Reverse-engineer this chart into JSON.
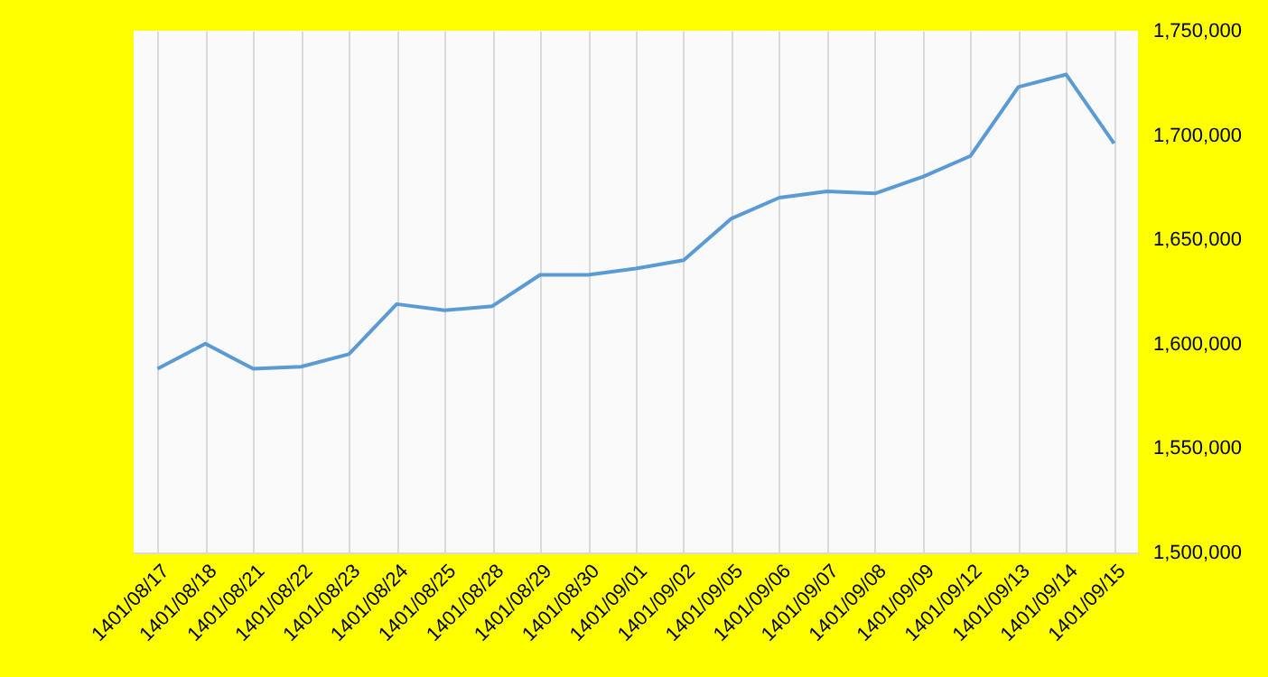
{
  "chart_data": {
    "type": "line",
    "categories": [
      "1401/08/17",
      "1401/08/18",
      "1401/08/21",
      "1401/08/22",
      "1401/08/23",
      "1401/08/24",
      "1401/08/25",
      "1401/08/28",
      "1401/08/29",
      "1401/08/30",
      "1401/09/01",
      "1401/09/02",
      "1401/09/05",
      "1401/09/06",
      "1401/09/07",
      "1401/09/08",
      "1401/09/09",
      "1401/09/12",
      "1401/09/13",
      "1401/09/14",
      "1401/09/15"
    ],
    "series": [
      {
        "color": "#5b9bd5",
        "values": [
          1588000,
          1600000,
          1588000,
          1589000,
          1595000,
          1619000,
          1616000,
          1618000,
          1633000,
          1633000,
          1636000,
          1640000,
          1660000,
          1670000,
          1673000,
          1672000,
          1680000,
          1690000,
          1723000,
          1729000,
          1696000
        ]
      }
    ],
    "ylim": [
      1500000,
      1750000
    ],
    "yticks": [
      {
        "value": 1500000,
        "label": "1,500,000"
      },
      {
        "value": 1550000,
        "label": "1,550,000"
      },
      {
        "value": 1600000,
        "label": "1,600,000"
      },
      {
        "value": 1650000,
        "label": "1,650,000"
      },
      {
        "value": 1700000,
        "label": "1,700,000"
      },
      {
        "value": 1750000,
        "label": "1,750,000"
      }
    ],
    "grid": "x",
    "marker": "none",
    "line_style": "solid"
  }
}
